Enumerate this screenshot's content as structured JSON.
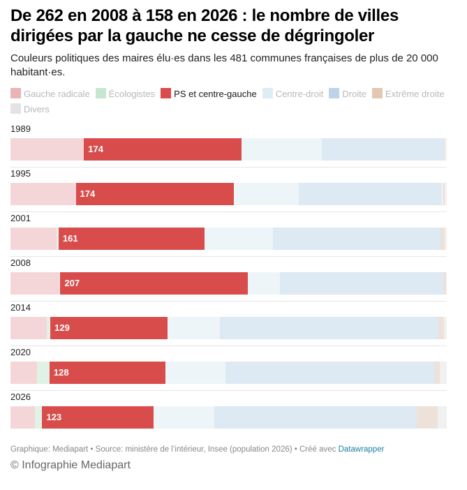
{
  "header": {
    "title": "De 262 en 2008 à 158 en 2026 : le nombre de villes dirigées par la gauche ne cesse de dégringoler",
    "subtitle": "Couleurs politiques des maires élu·es dans les 481 communes françaises de plus de 20 000 habitant·es."
  },
  "legend": [
    {
      "label": "Gauche radicale",
      "color": "#f5d6d8",
      "swatch": "#eab4b7",
      "active": false
    },
    {
      "label": "Écologistes",
      "color": "#e0f2e6",
      "swatch": "#c6e6d1",
      "active": false
    },
    {
      "label": "PS et centre-gauche",
      "color": "#d94c4c",
      "swatch": "#d94c4c",
      "active": true
    },
    {
      "label": "Centre-droit",
      "color": "#edf5f9",
      "swatch": "#dcedf5",
      "active": false
    },
    {
      "label": "Droite",
      "color": "#dde9f3",
      "swatch": "#bcd3e8",
      "active": false
    },
    {
      "label": "Extrême droite",
      "color": "#ede2d9",
      "swatch": "#e2c8b3",
      "active": false
    },
    {
      "label": "Divers",
      "color": "#f0f0f0",
      "swatch": "#e3e3e3",
      "active": false
    }
  ],
  "chart_data": {
    "type": "bar",
    "orientation": "horizontal",
    "stacked": true,
    "title": "De 262 en 2008 à 158 en 2026 : le nombre de villes dirigées par la gauche ne cesse de dégringoler",
    "subtitle": "Couleurs politiques des maires élu·es dans les 481 communes françaises de plus de 20 000 habitant·es.",
    "total": 481,
    "categories": [
      "1989",
      "1995",
      "2001",
      "2008",
      "2014",
      "2020",
      "2026"
    ],
    "series": [
      {
        "name": "Gauche radicale",
        "values": [
          81,
          72,
          51,
          54,
          40,
          29,
          27
        ]
      },
      {
        "name": "Écologistes",
        "values": [
          0,
          0,
          2,
          1,
          4,
          14,
          8
        ]
      },
      {
        "name": "PS et centre-gauche",
        "values": [
          174,
          174,
          161,
          207,
          129,
          128,
          123
        ],
        "labeled": true
      },
      {
        "name": "Centre-droit",
        "values": [
          88,
          72,
          75,
          35,
          58,
          66,
          67
        ]
      },
      {
        "name": "Droite",
        "values": [
          135,
          158,
          185,
          180,
          241,
          230,
          223
        ]
      },
      {
        "name": "Extrême droite",
        "values": [
          1,
          3,
          5,
          3,
          6,
          6,
          23
        ]
      },
      {
        "name": "Divers",
        "values": [
          2,
          2,
          2,
          1,
          3,
          8,
          10
        ]
      }
    ],
    "legend_position": "top",
    "grid": false
  },
  "footer": {
    "credit": "Graphique: Mediapart • Source: ministère de l’intérieur, Insee (population 2026) • Créé avec ",
    "link": "Datawrapper",
    "byline": "© Infographie Mediapart"
  }
}
